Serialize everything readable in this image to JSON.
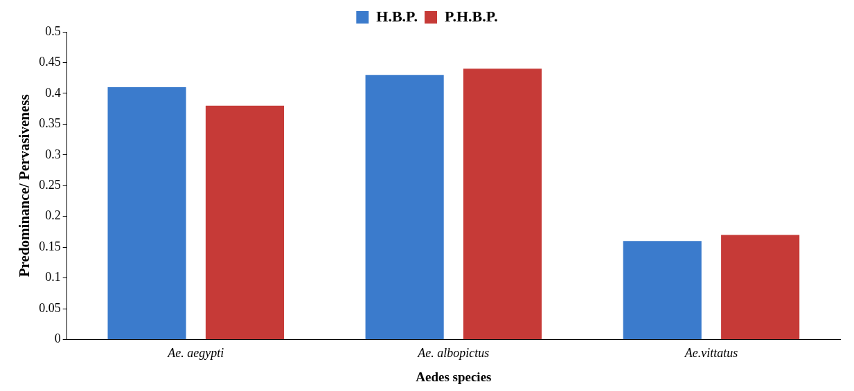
{
  "chart_data": {
    "type": "bar",
    "xlabel": "Aedes species",
    "ylabel": "Predominance/ Pervasiveness",
    "categories": [
      "Ae. aegypti",
      "Ae. albopictus",
      "Ae.vittatus"
    ],
    "series": [
      {
        "name": "H.B.P.",
        "color": "#3b7bcc",
        "values": [
          0.41,
          0.43,
          0.16
        ]
      },
      {
        "name": "P.H.B.P.",
        "color": "#c63a37",
        "values": [
          0.38,
          0.44,
          0.17
        ]
      }
    ],
    "ylim": [
      0,
      0.5
    ],
    "yticks": [
      0,
      0.05,
      0.1,
      0.15,
      0.2,
      0.25,
      0.3,
      0.35,
      0.4,
      0.45,
      0.5
    ],
    "grid": false,
    "legend": "top"
  }
}
